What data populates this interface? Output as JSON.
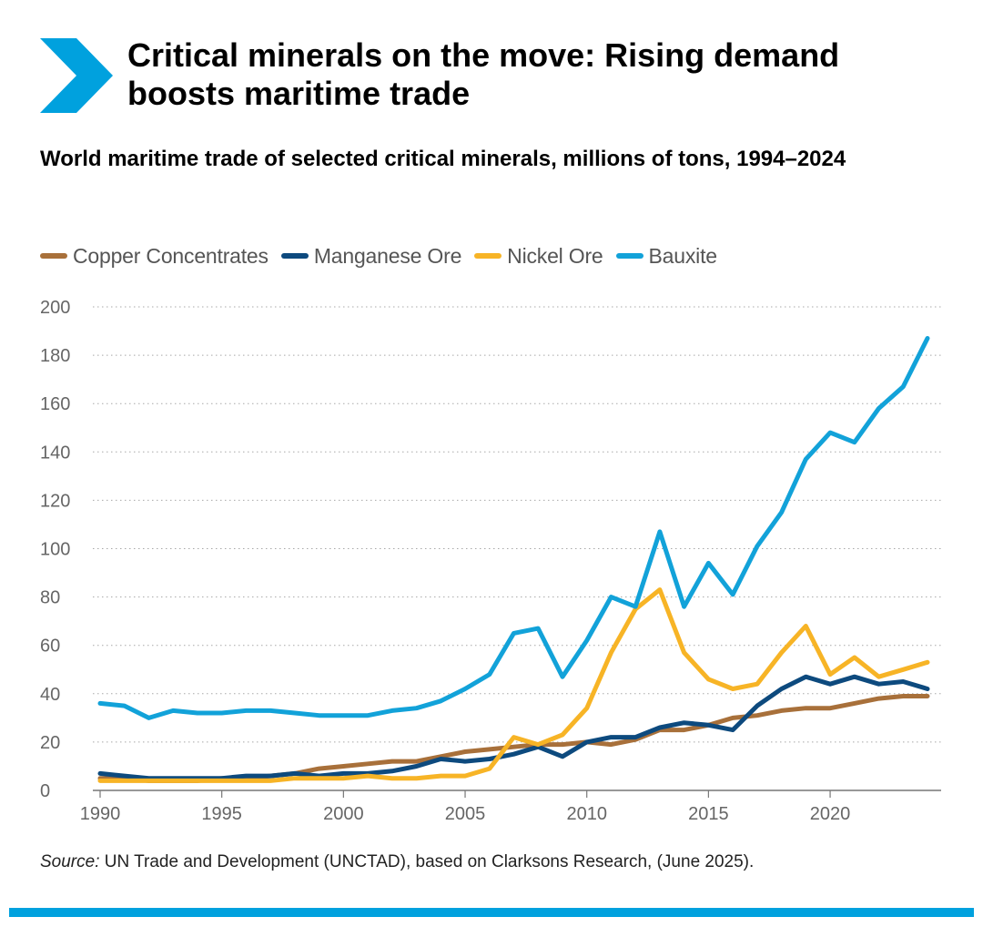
{
  "header": {
    "title": "Critical minerals on the move: Rising demand boosts maritime trade",
    "subtitle": "World maritime trade of selected critical minerals, millions of tons, 1994–2024",
    "logo_icon": "chevron-right-icon",
    "brand_color": "#00a1de"
  },
  "footer": {
    "source_prefix": "Source:",
    "source_text": " UN Trade and Development (UNCTAD), based on Clarksons Research, (June 2025)."
  },
  "chart_data": {
    "type": "line",
    "title": "World maritime trade of selected critical minerals, millions of tons, 1994–2024",
    "xlabel": "",
    "ylabel": "",
    "xlim": [
      1990,
      2024
    ],
    "ylim": [
      0,
      200
    ],
    "x_ticks": [
      1990,
      1995,
      2000,
      2005,
      2010,
      2015,
      2020
    ],
    "y_ticks": [
      0,
      20,
      40,
      60,
      80,
      100,
      120,
      140,
      160,
      180,
      200
    ],
    "grid": "horizontal-dotted",
    "legend_position": "top-left",
    "x": [
      1990,
      1991,
      1992,
      1993,
      1994,
      1995,
      1996,
      1997,
      1998,
      1999,
      2000,
      2001,
      2002,
      2003,
      2004,
      2005,
      2006,
      2007,
      2008,
      2009,
      2010,
      2011,
      2012,
      2013,
      2014,
      2015,
      2016,
      2017,
      2018,
      2019,
      2020,
      2021,
      2022,
      2023,
      2024
    ],
    "series": [
      {
        "name": "Copper Concentrates",
        "color": "#a8703a",
        "values": [
          5,
          5,
          4,
          4,
          4,
          5,
          5,
          6,
          7,
          9,
          10,
          11,
          12,
          12,
          14,
          16,
          17,
          18,
          19,
          19,
          20,
          19,
          21,
          25,
          25,
          27,
          30,
          31,
          33,
          34,
          34,
          36,
          38,
          39,
          39
        ]
      },
      {
        "name": "Manganese Ore",
        "color": "#0d4a7e",
        "values": [
          7,
          6,
          5,
          5,
          5,
          5,
          6,
          6,
          7,
          6,
          7,
          7,
          8,
          10,
          13,
          12,
          13,
          15,
          18,
          14,
          20,
          22,
          22,
          26,
          28,
          27,
          25,
          35,
          42,
          47,
          44,
          47,
          44,
          45,
          42
        ]
      },
      {
        "name": "Nickel Ore",
        "color": "#f7b426",
        "values": [
          4,
          4,
          4,
          4,
          4,
          4,
          4,
          4,
          5,
          5,
          5,
          6,
          5,
          5,
          6,
          6,
          9,
          22,
          19,
          23,
          34,
          57,
          75,
          83,
          57,
          46,
          42,
          44,
          57,
          68,
          48,
          55,
          47,
          50,
          53
        ]
      },
      {
        "name": "Bauxite",
        "color": "#12a2d9",
        "values": [
          36,
          35,
          30,
          33,
          32,
          32,
          33,
          33,
          32,
          31,
          31,
          31,
          33,
          34,
          37,
          42,
          48,
          65,
          67,
          47,
          62,
          80,
          76,
          107,
          76,
          94,
          81,
          101,
          115,
          137,
          148,
          144,
          158,
          167,
          187
        ]
      }
    ]
  }
}
